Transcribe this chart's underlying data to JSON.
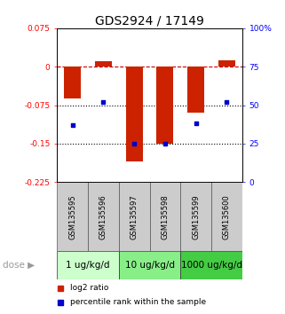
{
  "title": "GDS2924 / 17149",
  "samples": [
    "GSM135595",
    "GSM135596",
    "GSM135597",
    "GSM135598",
    "GSM135599",
    "GSM135600"
  ],
  "log2_ratios": [
    -0.062,
    0.01,
    -0.185,
    -0.15,
    -0.09,
    0.012
  ],
  "percentile_ranks": [
    37,
    52,
    25,
    25,
    38,
    52
  ],
  "bar_color": "#cc2200",
  "dot_color": "#0000cc",
  "left_ylim": [
    -0.225,
    0.075
  ],
  "right_ylim": [
    0,
    100
  ],
  "left_yticks": [
    0.075,
    0,
    -0.075,
    -0.15,
    -0.225
  ],
  "left_yticklabels": [
    "0.075",
    "0",
    "-0.075",
    "-0.15",
    "-0.225"
  ],
  "right_yticks": [
    100,
    75,
    50,
    25,
    0
  ],
  "right_yticklabels": [
    "100%",
    "75",
    "50",
    "25",
    "0"
  ],
  "hline_y0": 0,
  "hline_y1": -0.075,
  "hline_y2": -0.15,
  "dose_groups": [
    {
      "label": "1 ug/kg/d",
      "samples_idx": [
        0,
        1
      ],
      "color": "#ccffcc"
    },
    {
      "label": "10 ug/kg/d",
      "samples_idx": [
        2,
        3
      ],
      "color": "#88ee88"
    },
    {
      "label": "1000 ug/kg/d",
      "samples_idx": [
        4,
        5
      ],
      "color": "#44cc44"
    }
  ],
  "dose_label": "dose",
  "legend_bar_label": "log2 ratio",
  "legend_dot_label": "percentile rank within the sample",
  "sample_bg_color": "#cccccc",
  "bar_width": 0.55,
  "title_fontsize": 10,
  "tick_fontsize": 6.5,
  "sample_fontsize": 6,
  "dose_fontsize": 7.5,
  "legend_fontsize": 6.5
}
